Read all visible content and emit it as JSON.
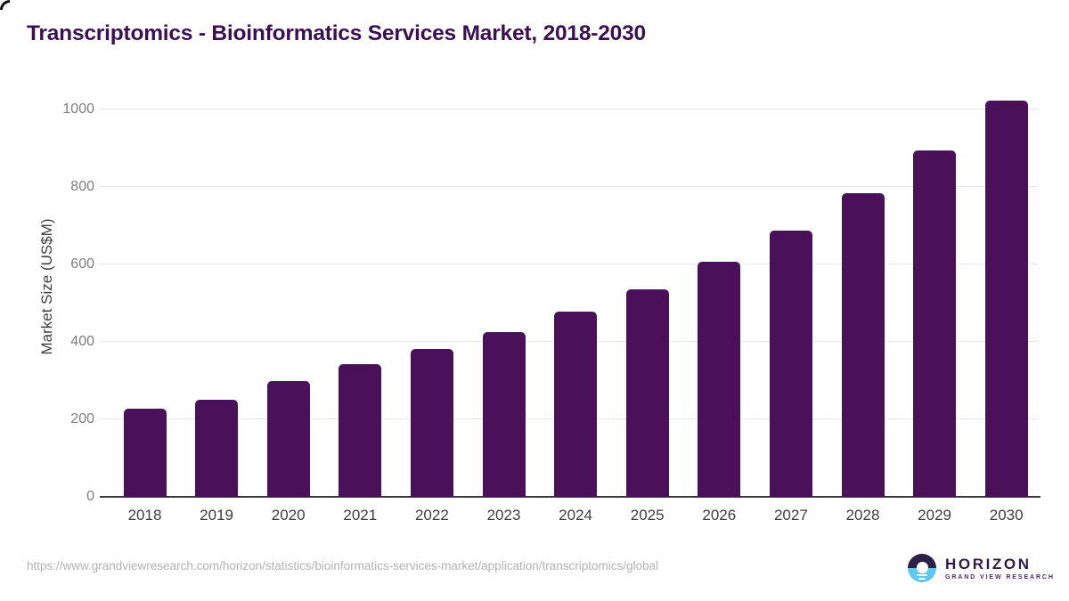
{
  "chart_data": {
    "type": "bar",
    "title": "Transcriptomics - Bioinformatics Services Market, 2018-2030",
    "categories": [
      "2018",
      "2019",
      "2020",
      "2021",
      "2022",
      "2023",
      "2024",
      "2025",
      "2026",
      "2027",
      "2028",
      "2029",
      "2030"
    ],
    "values": [
      228,
      250,
      299,
      343,
      381,
      426,
      478,
      536,
      608,
      687,
      783,
      894,
      1022
    ],
    "xlabel": "",
    "ylabel": "Market Size (US$M)",
    "ylim": [
      0,
      1000
    ],
    "yticks": [
      0,
      200,
      400,
      600,
      800,
      1000
    ],
    "grid": true,
    "legend": false,
    "bar_color": "#4a115a"
  },
  "footer": {
    "source_url": "https://www.grandviewresearch.com/horizon/statistics/bioinformatics-services-market/application/transcriptomics/global"
  },
  "logo": {
    "wordmark": "HORIZON",
    "subtitle": "GRAND VIEW RESEARCH"
  },
  "colors": {
    "bar": "#4a115a",
    "title_text": "#3c0f55",
    "axis_line": "#3a3a3a",
    "gridline": "#e8e8e8",
    "y_tick_text": "#7d7d7d",
    "x_tick_text": "#3d3d3d",
    "url_text": "#b3b3b3",
    "logo_dark_purple": "#2e1f47",
    "logo_light_blue": "#5fc8f0"
  }
}
